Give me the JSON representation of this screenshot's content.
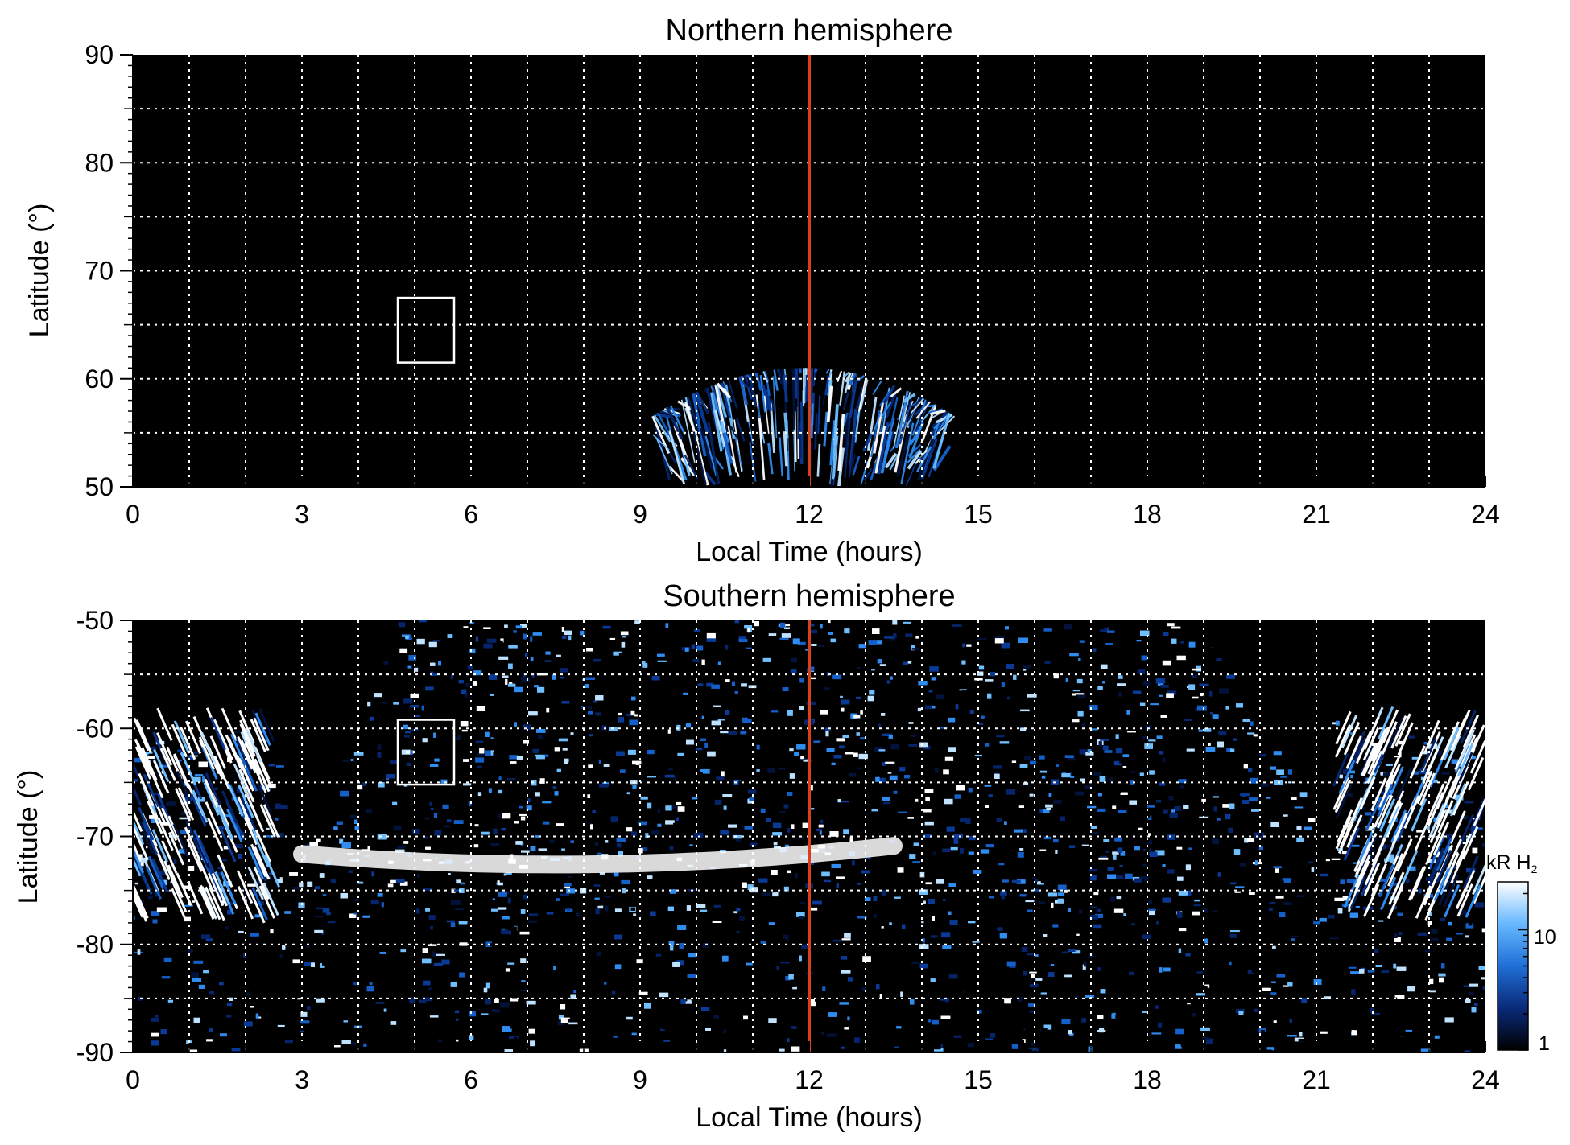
{
  "chart_data": [
    {
      "type": "heatmap",
      "title": "Northern hemisphere",
      "xlabel": "Local Time (hours)",
      "ylabel": "Latitude (°)",
      "xlim": [
        0,
        24
      ],
      "ylim": [
        50,
        90
      ],
      "xticks": [
        "0",
        "3",
        "6",
        "9",
        "12",
        "15",
        "18",
        "21",
        "24"
      ],
      "yticks": [
        "50",
        "60",
        "70",
        "80",
        "90"
      ],
      "grid": true,
      "noon_line_x": 12,
      "box": {
        "x": [
          4.7,
          5.7
        ],
        "y": [
          61.5,
          67.5
        ]
      },
      "emission_region": {
        "x": [
          9.5,
          14.3
        ],
        "y": [
          50,
          61
        ]
      }
    },
    {
      "type": "heatmap",
      "title": "Southern hemisphere",
      "xlabel": "Local Time (hours)",
      "ylabel": "Latitude (°)",
      "xlim": [
        0,
        24
      ],
      "ylim": [
        -90,
        -50
      ],
      "xticks": [
        "0",
        "3",
        "6",
        "9",
        "12",
        "15",
        "18",
        "21",
        "24"
      ],
      "yticks": [
        "-50",
        "-60",
        "-70",
        "-80",
        "-90"
      ],
      "grid": true,
      "noon_line_x": 12,
      "box": {
        "x": [
          4.7,
          5.7
        ],
        "y": [
          -65.2,
          -59.2
        ]
      },
      "auroral_arc": {
        "x": [
          3,
          13.5
        ],
        "y": [
          -72,
          -74
        ]
      }
    }
  ],
  "colorbar": {
    "label_main": "kR H",
    "label_sub": "2",
    "tick_labels": [
      "10",
      "1"
    ],
    "scale": "log",
    "range": [
      1,
      25
    ],
    "colors": [
      "#000000",
      "#0a2a7a",
      "#1f6fd6",
      "#66b8ff",
      "#ffffff"
    ]
  },
  "colors": {
    "background": "#000000",
    "noon_line": "#d6401a",
    "grid": "#ffffff"
  }
}
